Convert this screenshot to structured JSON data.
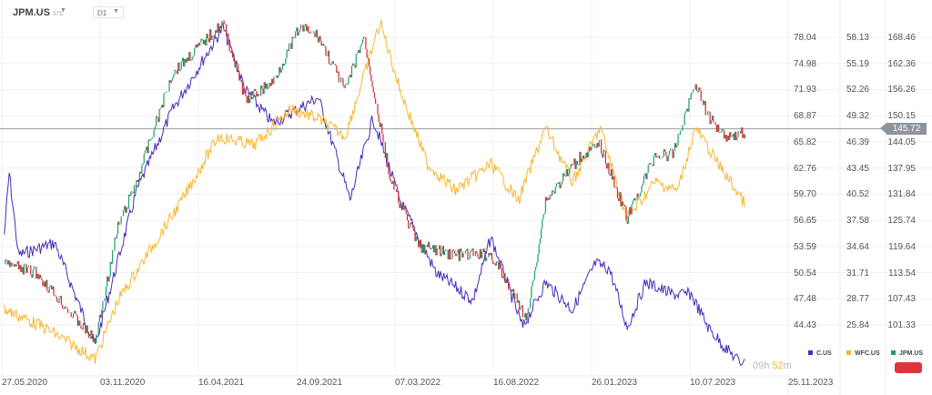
{
  "header": {
    "symbol": "JPM.US",
    "symbol_suffix": "STC",
    "timeframe": "D1"
  },
  "current_price": "145.72",
  "timer": {
    "hours": "09h",
    "minutes": "52",
    "unit": "m"
  },
  "legend": [
    {
      "label": "C.US",
      "color": "#4b2bb8"
    },
    {
      "label": "WFC.US",
      "color": "#f7b731"
    },
    {
      "label": "JPM.US",
      "color": "#1f9e6e"
    }
  ],
  "colors": {
    "up": "#1f9e6e",
    "down": "#d9262e",
    "sell_button": "#e0343b"
  },
  "chart_data": {
    "type": "line",
    "x_unit": "days since 27.05.2020",
    "x_ticks": [
      "27.05.2020",
      "03.11.2020",
      "16.04.2021",
      "24.09.2021",
      "07.03.2022",
      "16.08.2022",
      "26.01.2023",
      "10.07.2023",
      "25.11.2023"
    ],
    "axes": {
      "C.US": {
        "ticks": [
          "78.04",
          "74.98",
          "71.93",
          "68.87",
          "65.82",
          "62.76",
          "59.70",
          "56.65",
          "53.59",
          "50.54",
          "47.48",
          "44.43"
        ],
        "range": [
          44.43,
          78.04
        ]
      },
      "WFC.US": {
        "ticks": [
          "58.13",
          "55.19",
          "52.26",
          "49.32",
          "46.39",
          "43.45",
          "40.52",
          "37.58",
          "34.64",
          "31.71",
          "28.77",
          "25.84"
        ],
        "range": [
          25.84,
          58.13
        ]
      },
      "JPM.US": {
        "ticks": [
          "168.46",
          "162.36",
          "156.26",
          "150.15",
          "144.05",
          "137.95",
          "131.84",
          "125.74",
          "119.64",
          "113.54",
          "107.43",
          "101.33"
        ],
        "range": [
          101.33,
          168.46
        ]
      }
    },
    "series": [
      {
        "name": "C.US",
        "x": [
          4,
          12,
          27,
          86,
          152,
          219,
          278,
          360,
          397,
          441,
          515,
          567,
          604,
          648,
          707,
          767,
          796,
          848,
          885,
          929,
          966,
          989,
          1018,
          1048,
          1092,
          1122,
          1151,
          1181,
          1203,
          1211
        ],
        "y": [
          55,
          62.2,
          52.6,
          54,
          42,
          60,
          69.6,
          79.2,
          71.8,
          68,
          71,
          59,
          68.6,
          59,
          50.5,
          47.3,
          54.7,
          44.1,
          49.4,
          46.2,
          51.6,
          51,
          44.1,
          49.4,
          48,
          48,
          44,
          41.5,
          40,
          41
        ]
      },
      {
        "name": "WFC.US",
        "x": [
          4,
          71,
          152,
          189,
          293,
          352,
          411,
          470,
          515,
          559,
          616,
          649,
          693,
          738,
          797,
          841,
          885,
          929,
          974,
          1018,
          1063,
          1100,
          1129,
          1166,
          1196,
          1211
        ],
        "y": [
          27.6,
          25.5,
          22,
          28.6,
          39.8,
          47,
          46,
          50.1,
          49,
          47,
          59.8,
          52.1,
          43.9,
          40.9,
          43.9,
          39.8,
          48,
          41.9,
          48,
          37.8,
          41.9,
          40.9,
          48,
          43.9,
          40.9,
          39.3
        ]
      },
      {
        "name": "JPM.US",
        "x": [
          4,
          56,
          152,
          189,
          219,
          278,
          360,
          397,
          441,
          485,
          515,
          559,
          589,
          633,
          678,
          737,
          796,
          855,
          885,
          944,
          974,
          1018,
          1063,
          1092,
          1129,
          1151,
          1181,
          1211
        ],
        "y": [
          115.6,
          113.5,
          97.5,
          124.1,
          134.7,
          160.2,
          171.9,
          153.8,
          158,
          170.8,
          168.7,
          156,
          168.7,
          134.7,
          119.8,
          117.7,
          117.7,
          102.8,
          130.4,
          141,
          143.2,
          126.2,
          141,
          141,
          158,
          149.6,
          145.3,
          146.4
        ]
      }
    ]
  }
}
